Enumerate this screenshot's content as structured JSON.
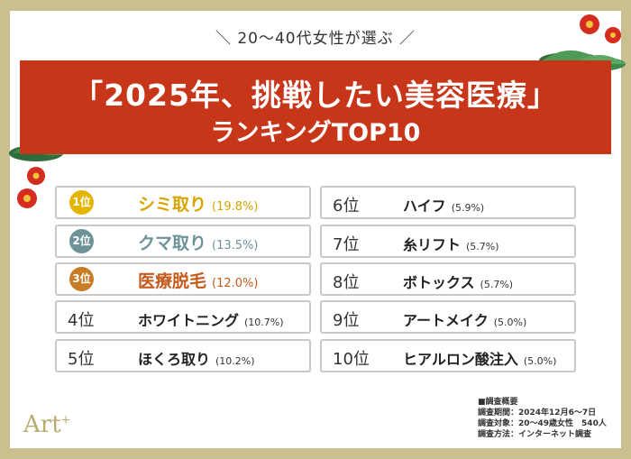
{
  "subtitle": "＼ 20〜40代女性が選ぶ ／",
  "title_line1": "「2025年、挑戦したい美容医療」",
  "title_line2": "ランキングTOP10",
  "chart_data": {
    "type": "table",
    "rows": [
      {
        "rank": "1位",
        "item": "シミ取り",
        "value": "(19.8%)"
      },
      {
        "rank": "2位",
        "item": "クマ取り",
        "value": "(13.5%)"
      },
      {
        "rank": "3位",
        "item": "医療脱毛",
        "value": "(12.0%)"
      },
      {
        "rank": "4位",
        "item": "ホワイトニング",
        "value": "(10.7%)"
      },
      {
        "rank": "5位",
        "item": "ほくろ取り",
        "value": "(10.2%)"
      },
      {
        "rank": "6位",
        "item": "ハイフ",
        "value": "(5.9%)"
      },
      {
        "rank": "7位",
        "item": "糸リフト",
        "value": "(5.7%)"
      },
      {
        "rank": "8位",
        "item": "ボトックス",
        "value": "(5.7%)"
      },
      {
        "rank": "9位",
        "item": "アートメイク",
        "value": "(5.0%)"
      },
      {
        "rank": "10位",
        "item": "ヒアルロン酸注入",
        "value": "(5.0%)"
      }
    ],
    "medal_colors": [
      "#e5b400",
      "#6d9298",
      "#c77c25"
    ]
  },
  "survey": {
    "heading": "■調査概要",
    "period": "調査期間：2024年12月6〜7日",
    "target": "調査対象：20〜49歳女性　540人",
    "method": "調査方法：インターネット調査"
  },
  "logo": {
    "text": "Art",
    "plus": "+"
  }
}
